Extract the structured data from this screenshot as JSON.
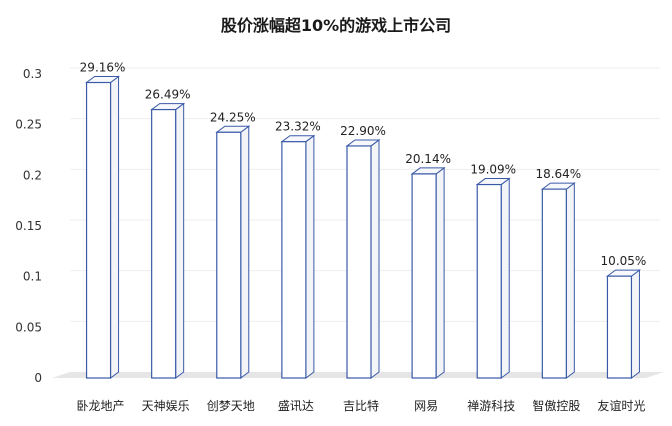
{
  "chart_data": {
    "type": "bar",
    "title": "股价涨幅超10%的游戏上市公司",
    "categories": [
      "卧龙地产",
      "天神娱乐",
      "创梦天地",
      "盛讯达",
      "吉比特",
      "网易",
      "禅游科技",
      "智傲控股",
      "友谊时光"
    ],
    "values": [
      0.2916,
      0.2649,
      0.2425,
      0.2332,
      0.229,
      0.2014,
      0.1909,
      0.1864,
      0.1005
    ],
    "data_labels": [
      "29.16%",
      "26.49%",
      "24.25%",
      "23.32%",
      "22.90%",
      "20.14%",
      "19.09%",
      "18.64%",
      "10.05%"
    ],
    "y_ticks": [
      "0",
      "0.05",
      "0.1",
      "0.15",
      "0.2",
      "0.25",
      "0.3"
    ],
    "ylim": [
      0,
      0.3
    ],
    "xlabel": "",
    "ylabel": "",
    "grid": true,
    "bar_edge_color": "#3a5aa8",
    "bar_fill_color": "#ffffff",
    "bar_side_color": "#f3f4f8",
    "floor_color": "#e6e6e6"
  }
}
